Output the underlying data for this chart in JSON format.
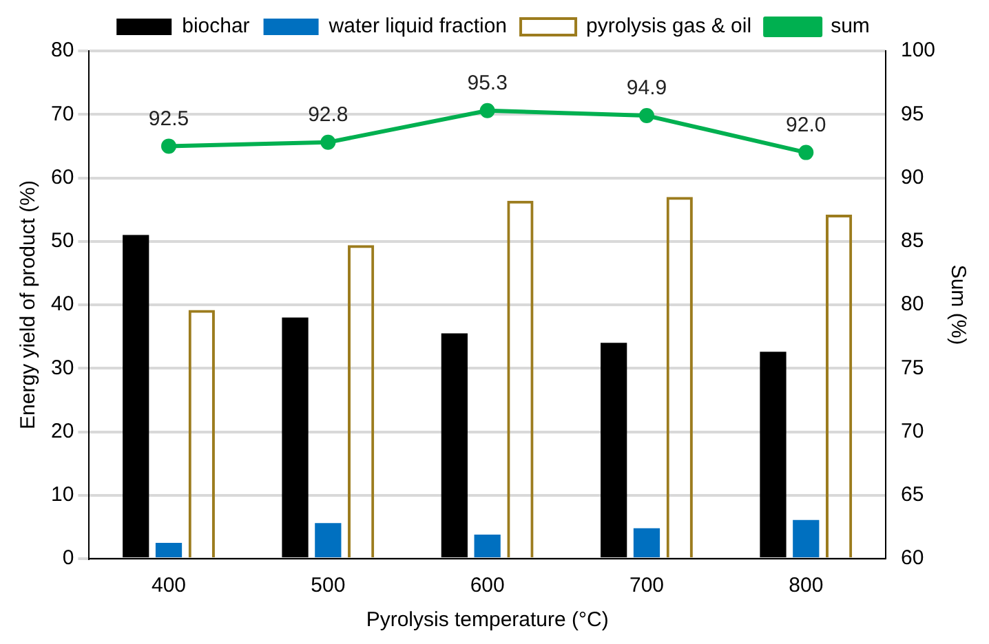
{
  "chart_data": {
    "type": "bar",
    "xlabel": "Pyrolysis temperature (°C)",
    "ylabel": "Energy yield of product (%)",
    "y2label": "Sum (%)",
    "categories": [
      "400",
      "500",
      "600",
      "700",
      "800"
    ],
    "series": [
      {
        "name": "biochar",
        "color": "#000000",
        "values": [
          51,
          38,
          35.5,
          34,
          32.6
        ]
      },
      {
        "name": "water liquid fraction",
        "color": "#0070c0",
        "values": [
          2.5,
          5.6,
          3.8,
          4.8,
          6.1
        ]
      },
      {
        "name": "pyrolysis gas & oil",
        "color": "#9c7c1e",
        "values": [
          39.2,
          49.4,
          56.4,
          57,
          54.2
        ]
      },
      {
        "name": "sum",
        "type": "line",
        "axis": "y2",
        "color": "#00b050",
        "values": [
          92.5,
          92.8,
          95.3,
          94.9,
          92.0
        ],
        "value_labels": [
          "92.5",
          "92.8",
          "95.3",
          "94.9",
          "92.0"
        ]
      }
    ],
    "ylim": [
      0,
      80
    ],
    "yticks": [
      0,
      10,
      20,
      30,
      40,
      50,
      60,
      70,
      80
    ],
    "y2lim": [
      60,
      100
    ],
    "y2ticks": [
      60,
      65,
      70,
      75,
      80,
      85,
      90,
      95,
      100
    ],
    "grid": "y",
    "legend": "top",
    "marker": "circle"
  }
}
